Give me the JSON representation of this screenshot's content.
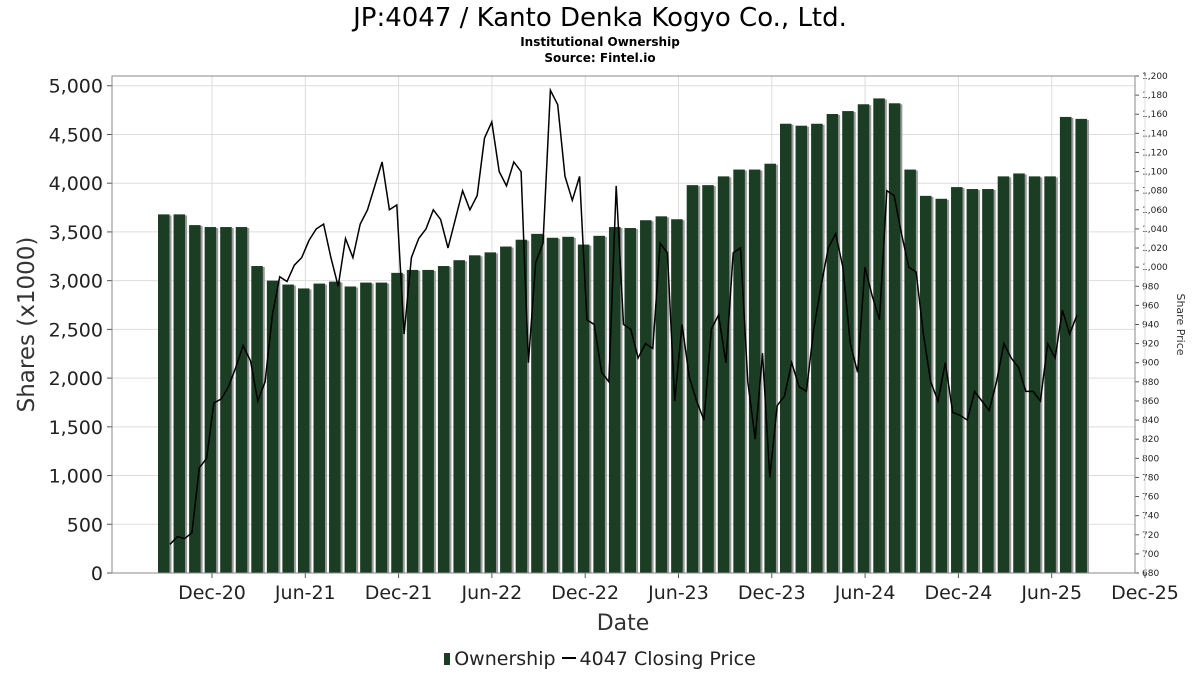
{
  "header": {
    "title": "JP:4047 / Kanto Denka Kogyo Co., Ltd.",
    "subtitle1": "Institutional Ownership",
    "subtitle2": "Source: Fintel.io"
  },
  "legend": {
    "ownership_label": "Ownership",
    "price_label": "4047 Closing Price"
  },
  "colors": {
    "bar": "#1a3d24",
    "bar_shadow": "#9a9a9a",
    "price_line": "#000000",
    "grid": "#dddddd"
  },
  "chart_data": {
    "type": "bar",
    "xlabel": "Date",
    "ylabel": "Shares (x1000)",
    "y2label": "Share Price",
    "ylim": [
      0,
      5100
    ],
    "y2lim": [
      680,
      1200
    ],
    "yticks": [
      "0",
      "500",
      "1,000",
      "1,500",
      "2,000",
      "2,500",
      "3,000",
      "3,500",
      "4,000",
      "4,500",
      "5,000"
    ],
    "y2ticks": [
      "680",
      "700",
      "720",
      "740",
      "760",
      "780",
      "800",
      "820",
      "840",
      "860",
      "880",
      "900",
      "920",
      "940",
      "960",
      "980",
      "1,000",
      "1,020",
      "1,040",
      "1,060",
      "1,080",
      "1,100",
      "1,120",
      "1,140",
      "1,160",
      "1,180",
      "1,200"
    ],
    "xticks": [
      "Dec-20",
      "Jun-21",
      "Dec-21",
      "Jun-22",
      "Dec-22",
      "Jun-23",
      "Dec-23",
      "Jun-24",
      "Dec-24",
      "Jun-25",
      "Dec-25"
    ],
    "grid": true,
    "legend_position": "bottom",
    "series": [
      {
        "name": "Ownership",
        "type": "bar",
        "values": [
          3680,
          3680,
          3570,
          3550,
          3550,
          3550,
          3150,
          3000,
          2960,
          2920,
          2970,
          2990,
          2940,
          2980,
          2980,
          3080,
          3110,
          3110,
          3150,
          3210,
          3260,
          3290,
          3350,
          3420,
          3480,
          3440,
          3450,
          3370,
          3460,
          3550,
          3540,
          3620,
          3660,
          3630,
          3980,
          3980,
          4070,
          4140,
          4140,
          4200,
          4610,
          4590,
          4610,
          4710,
          4740,
          4810,
          4870,
          4820,
          4140,
          3870,
          3840,
          3960,
          3940,
          3940,
          4070,
          4100,
          4070,
          4070,
          4680,
          4660
        ]
      },
      {
        "name": "4047 Closing Price",
        "type": "line",
        "values": [
          710,
          718,
          716,
          722,
          790,
          800,
          858,
          862,
          875,
          895,
          918,
          902,
          860,
          880,
          950,
          990,
          985,
          1002,
          1010,
          1028,
          1040,
          1045,
          1010,
          980,
          1030,
          1010,
          1045,
          1060,
          1085,
          1110,
          1060,
          1065,
          930,
          1010,
          1030,
          1040,
          1060,
          1050,
          1020,
          1050,
          1080,
          1060,
          1075,
          1135,
          1152,
          1100,
          1085,
          1110,
          1100,
          900,
          1005,
          1025,
          1185,
          1170,
          1095,
          1070,
          1095,
          945,
          940,
          890,
          880,
          1085,
          940,
          935,
          905,
          920,
          915,
          1025,
          1015,
          860,
          940,
          885,
          860,
          840,
          935,
          950,
          900,
          1015,
          1020,
          880,
          820,
          910,
          780,
          855,
          865,
          900,
          875,
          870,
          935,
          980,
          1020,
          1035,
          1000,
          920,
          890,
          1000,
          970,
          945,
          1080,
          1075,
          1035,
          1000,
          995,
          930,
          880,
          860,
          900,
          848,
          845,
          840,
          870,
          860,
          850,
          880,
          920,
          905,
          895,
          870,
          870,
          860,
          920,
          905,
          955,
          930,
          950
        ]
      }
    ]
  }
}
